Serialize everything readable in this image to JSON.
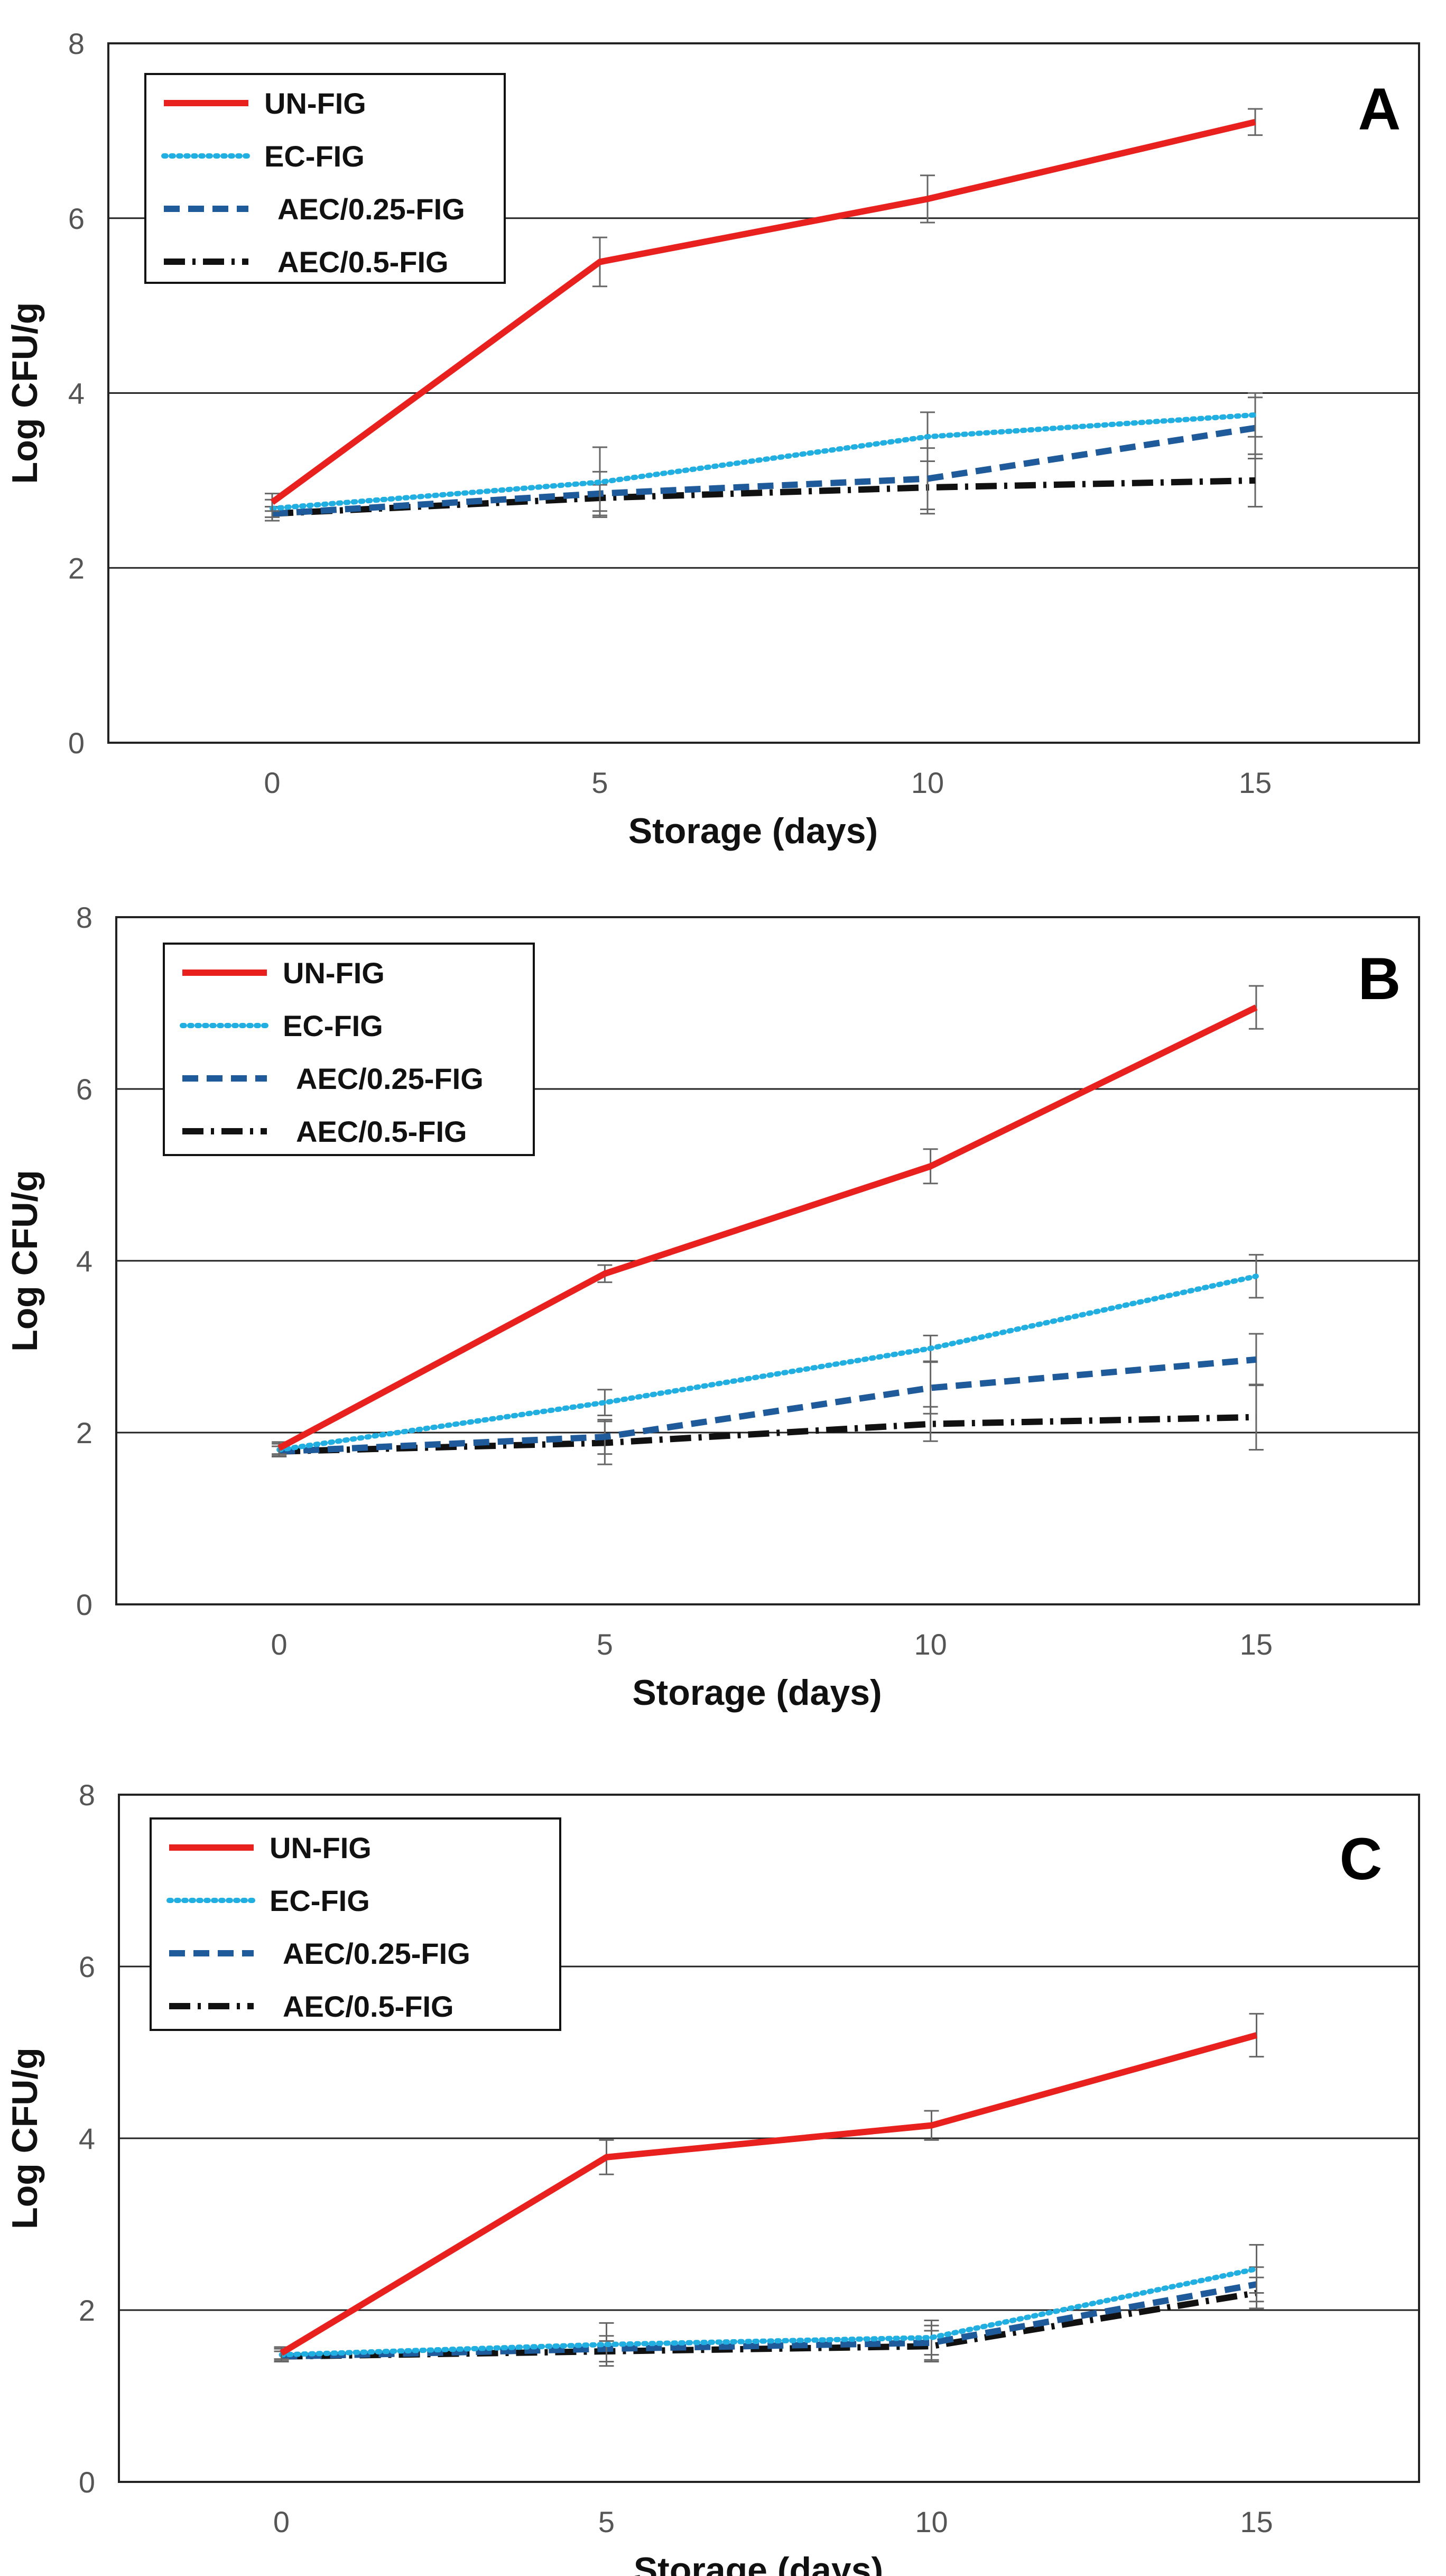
{
  "chart_data": [
    {
      "type": "line",
      "panel_label": "A",
      "xlabel": "Storage (days)",
      "ylabel": "Log CFU/g",
      "x": [
        0,
        5,
        10,
        15
      ],
      "xticks": [
        "0",
        "5",
        "10",
        "15"
      ],
      "yticks": [
        "0",
        "2",
        "4",
        "6",
        "8"
      ],
      "xlim": [
        -2.5,
        17.5
      ],
      "ylim": [
        0,
        8
      ],
      "grid": "horizontal at 2, 4, 6",
      "legend_position": "top-left",
      "series": [
        {
          "name": "UN-FIG",
          "values": [
            2.75,
            5.5,
            6.22,
            7.1
          ],
          "error": [
            0.1,
            0.28,
            0.27,
            0.15
          ]
        },
        {
          "name": "EC-FIG",
          "values": [
            2.68,
            2.98,
            3.5,
            3.75
          ],
          "error": [
            0.1,
            0.4,
            0.28,
            0.25
          ]
        },
        {
          "name": "AEC/0.25-FIG",
          "values": [
            2.62,
            2.85,
            3.02,
            3.6
          ],
          "error": [
            0.08,
            0.25,
            0.35,
            0.35
          ]
        },
        {
          "name": "AEC/0.5-FIG",
          "values": [
            2.62,
            2.8,
            2.92,
            3.0
          ],
          "error": [
            0.08,
            0.15,
            0.3,
            0.3
          ]
        }
      ]
    },
    {
      "type": "line",
      "panel_label": "B",
      "xlabel": "Storage (days)",
      "ylabel": "Log CFU/g",
      "x": [
        0,
        5,
        10,
        15
      ],
      "xticks": [
        "0",
        "5",
        "10",
        "15"
      ],
      "yticks": [
        "0",
        "2",
        "4",
        "6",
        "8"
      ],
      "xlim": [
        -2.5,
        17.5
      ],
      "ylim": [
        0,
        8
      ],
      "grid": "horizontal at 2, 4, 6",
      "legend_position": "top-left",
      "series": [
        {
          "name": "UN-FIG",
          "values": [
            1.82,
            3.85,
            5.1,
            6.95
          ],
          "error": [
            0.07,
            0.1,
            0.2,
            0.25
          ]
        },
        {
          "name": "EC-FIG",
          "values": [
            1.8,
            2.35,
            2.98,
            3.82
          ],
          "error": [
            0.07,
            0.15,
            0.15,
            0.25
          ]
        },
        {
          "name": "AEC/0.25-FIG",
          "values": [
            1.78,
            1.95,
            2.52,
            2.85
          ],
          "error": [
            0.06,
            0.2,
            0.3,
            0.3
          ]
        },
        {
          "name": "AEC/0.5-FIG",
          "values": [
            1.78,
            1.88,
            2.1,
            2.18
          ],
          "error": [
            0.06,
            0.25,
            0.2,
            0.38
          ]
        }
      ]
    },
    {
      "type": "line",
      "panel_label": "C",
      "xlabel": "Storage (days)",
      "ylabel": "Log CFU/g",
      "x": [
        0,
        5,
        10,
        15
      ],
      "xticks": [
        "0",
        "5",
        "10",
        "15"
      ],
      "yticks": [
        "0",
        "2",
        "4",
        "6",
        "8"
      ],
      "xlim": [
        -2.5,
        17.5
      ],
      "ylim": [
        0,
        8
      ],
      "grid": "horizontal at 2, 4, 6",
      "legend_position": "top-left",
      "series": [
        {
          "name": "UN-FIG",
          "values": [
            1.5,
            3.78,
            4.15,
            5.2
          ],
          "error": [
            0.07,
            0.2,
            0.17,
            0.25
          ]
        },
        {
          "name": "EC-FIG",
          "values": [
            1.48,
            1.6,
            1.68,
            2.48
          ],
          "error": [
            0.07,
            0.25,
            0.2,
            0.28
          ]
        },
        {
          "name": "AEC/0.25-FIG",
          "values": [
            1.46,
            1.55,
            1.62,
            2.3
          ],
          "error": [
            0.06,
            0.15,
            0.2,
            0.2
          ]
        },
        {
          "name": "AEC/0.5-FIG",
          "values": [
            1.46,
            1.52,
            1.58,
            2.2
          ],
          "error": [
            0.06,
            0.12,
            0.18,
            0.18
          ]
        }
      ]
    }
  ],
  "series_styles": {
    "UN-FIG": {
      "color": "#e8201e",
      "style": "solid"
    },
    "EC-FIG": {
      "color": "#21aee0",
      "style": "dotted"
    },
    "AEC/0.25-FIG": {
      "color": "#1f5b9a",
      "style": "dashed"
    },
    "AEC/0.5-FIG": {
      "color": "#111111",
      "style": "dash-dot"
    }
  },
  "colors": {
    "errorbar": "#666666",
    "grid": "#222222",
    "frame": "#222222"
  }
}
